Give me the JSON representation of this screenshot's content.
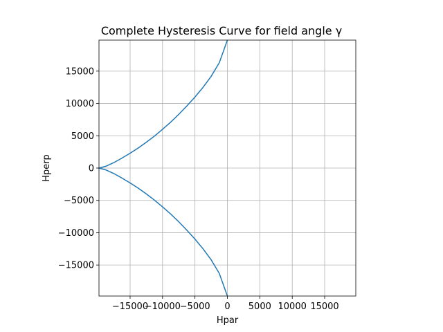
{
  "chart_data": {
    "type": "line",
    "title": "Complete Hysteresis Curve for field angle γ",
    "xlabel": "Hpar",
    "ylabel": "Hperp",
    "xlim": [
      -19800,
      19800
    ],
    "ylim": [
      -19800,
      19800
    ],
    "xticks": [
      -15000,
      -10000,
      -5000,
      0,
      5000,
      10000,
      15000
    ],
    "yticks": [
      -15000,
      -10000,
      -5000,
      0,
      5000,
      10000,
      15000
    ],
    "xtick_labels": [
      "−15000",
      "−10000",
      "−5000",
      "0",
      "5000",
      "10000",
      "15000"
    ],
    "ytick_labels": [
      "−15000",
      "−10000",
      "−5000",
      "0",
      "5000",
      "10000",
      "15000"
    ],
    "grid": true,
    "series": [
      {
        "color": "#1f77b4",
        "x": [
          0,
          -1250,
          -2500,
          -3750,
          -5000,
          -6250,
          -7500,
          -8750,
          -10000,
          -11250,
          -12500,
          -13750,
          -15000,
          -16250,
          -17500,
          -18750,
          -19800,
          -18750,
          -17500,
          -16250,
          -15000,
          -13750,
          -12500,
          -11250,
          -10000,
          -8750,
          -7500,
          -6250,
          -5000,
          -3750,
          -2500,
          -1250,
          0
        ],
        "y": [
          19800,
          16300,
          14200,
          12500,
          11000,
          9600,
          8300,
          7100,
          6000,
          4950,
          4000,
          3100,
          2300,
          1550,
          850,
          280,
          0,
          -280,
          -850,
          -1550,
          -2300,
          -3100,
          -4000,
          -4950,
          -6000,
          -7100,
          -8300,
          -9600,
          -11000,
          -12500,
          -14200,
          -16300,
          -19800
        ]
      }
    ]
  }
}
